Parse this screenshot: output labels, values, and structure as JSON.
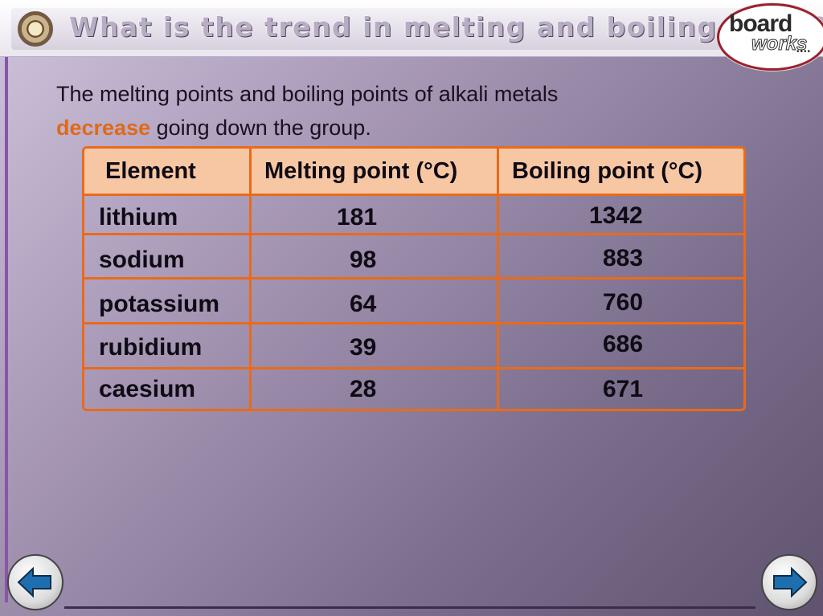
{
  "header": {
    "title": "What is the trend in melting and boiling point?",
    "brand_line1": "board",
    "brand_line2": "works",
    "brand_dots": "••••"
  },
  "intro": {
    "text_before": "The melting points and boiling points of alkali metals",
    "highlight": "decrease",
    "text_after": " going down the group.",
    "highlight_color": "#e0691a"
  },
  "table": {
    "headers": [
      "Element",
      "Melting point (°C)",
      "Boiling point (°C)"
    ],
    "rows": [
      {
        "element": "lithium",
        "melting": "181",
        "boiling": "1342"
      },
      {
        "element": "sodium",
        "melting": "98",
        "boiling": "883"
      },
      {
        "element": "potassium",
        "melting": "64",
        "boiling": "760"
      },
      {
        "element": "rubidium",
        "melting": "39",
        "boiling": "686"
      },
      {
        "element": "caesium",
        "melting": "28",
        "boiling": "671"
      }
    ],
    "border_color": "#ea6a1a",
    "header_bg": "#f7c7a4"
  },
  "nav": {
    "prev_icon": "arrow-left-icon",
    "next_icon": "arrow-right-icon",
    "icon_color": "#1e6fb0"
  }
}
